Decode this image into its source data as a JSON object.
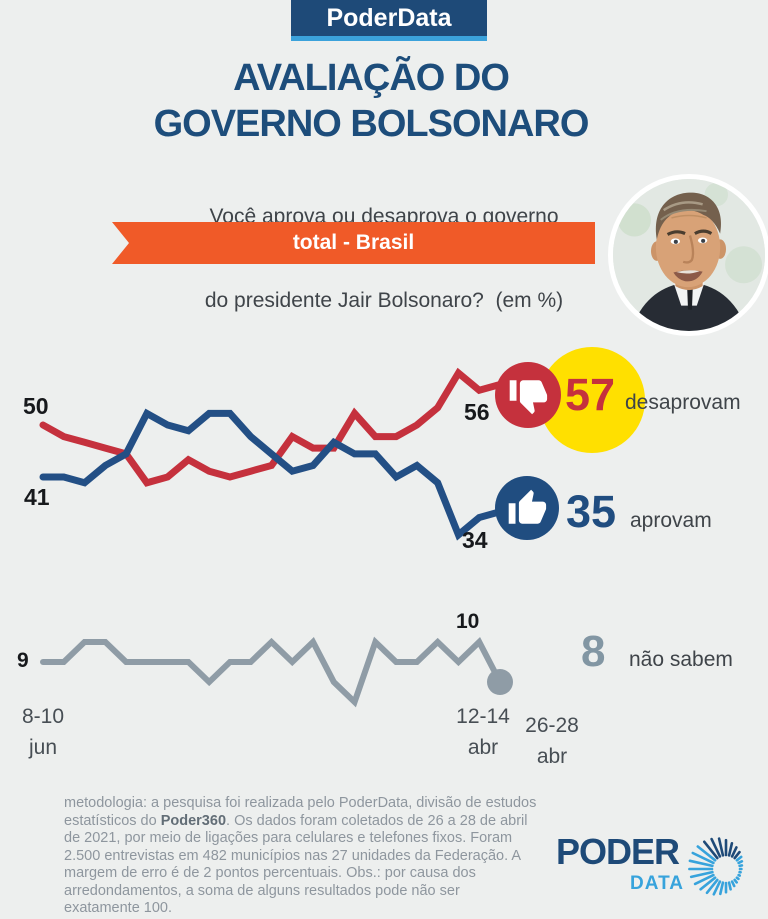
{
  "header": {
    "badge": "PoderData",
    "title_line1": "AVALIAÇÃO DO",
    "title_line2": "GOVERNO BOLSONARO",
    "subtitle_line1": "Você aprova ou desaprova o governo",
    "subtitle_line2": "do presidente Jair Bolsonaro?  (em %)"
  },
  "banner": {
    "label": "total - Brasil"
  },
  "chart_data": {
    "type": "line",
    "unit": "%",
    "title": "Avaliação do governo Bolsonaro (em %)",
    "grid": false,
    "legend_position": "right",
    "x_axis_labels": [
      {
        "line1": "8-10",
        "line2": "jun",
        "position": "first"
      },
      {
        "line1": "12-14",
        "line2": "abr",
        "position": "second_to_last"
      },
      {
        "line1": "26-28",
        "line2": "abr",
        "position": "last"
      }
    ],
    "series": [
      {
        "name": "desaprovam",
        "color": "#c5313d",
        "values": [
          50,
          48,
          47,
          46,
          45,
          40,
          41,
          44,
          42,
          41,
          42,
          43,
          48,
          46,
          46,
          52,
          48,
          48,
          50,
          53,
          59,
          56,
          57
        ],
        "first_label": "50",
        "second_to_last_label": "56",
        "final_label": "57"
      },
      {
        "name": "aprovam",
        "color": "#234f85",
        "values": [
          41,
          41,
          40,
          43,
          45,
          52,
          50,
          49,
          52,
          52,
          48,
          45,
          42,
          43,
          47,
          45,
          45,
          41,
          43,
          40,
          31,
          34,
          35
        ],
        "first_label": "41",
        "second_to_last_label": "34",
        "final_label": "35"
      },
      {
        "name": "não sabem",
        "color": "#8f9ca6",
        "values": [
          9,
          9,
          10,
          10,
          9,
          9,
          9,
          9,
          8,
          9,
          9,
          10,
          9,
          10,
          8,
          7,
          10,
          9,
          9,
          10,
          9,
          10,
          8
        ],
        "first_label": "9",
        "peak_label": "10",
        "final_label": "8"
      }
    ]
  },
  "point_labels": {
    "red_first": "50",
    "blue_first": "41",
    "red_prev": "56",
    "blue_prev": "34",
    "gray_first": "9",
    "gray_peak": "10"
  },
  "callouts": {
    "desaprovam_value": "57",
    "desaprovam_label": "desaprovam",
    "aprovam_value": "35",
    "aprovam_label": "aprovam",
    "nao_sabem_value": "8",
    "nao_sabem_label": "não sabem"
  },
  "axis_labels": {
    "first_l1": "8-10",
    "first_l2": "jun",
    "prev_l1": "12-14",
    "prev_l2": "abr",
    "last_l1": "26-28",
    "last_l2": "abr"
  },
  "footer": {
    "pre": "metodologia: a pesquisa foi realizada pelo PoderData, divisão de estudos estatísticos do ",
    "bold": "Poder360",
    "post": ". Os dados foram coletados de 26 a 28 de abril de 2021, por meio de ligações para celulares e telefones fixos. Foram 2.500 entrevistas em 482 municípios nas 27 unidades da Federação. A margem de erro é de 2 pontos percentuais. Obs.: por causa dos arredondamentos, a soma de alguns resultados pode não ser exatamente 100."
  },
  "logo": {
    "poder": "PODER",
    "data": "DATA"
  },
  "colors": {
    "background": "#edefee",
    "navy": "#1e4a78",
    "light_blue": "#37a3dc",
    "red": "#c5313d",
    "blue_line": "#234f85",
    "gray_line": "#8f9ca6",
    "orange": "#f05a28",
    "yellow": "#ffe000",
    "dark_text": "#3f4449",
    "footer_text": "#8e969e"
  }
}
